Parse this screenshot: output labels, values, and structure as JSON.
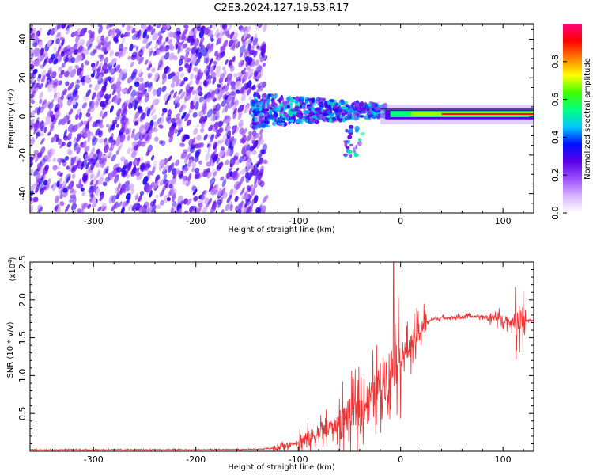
{
  "title": "C2E3.2024.127.19.53.R17",
  "chart_data": [
    {
      "type": "heatmap",
      "xlabel": "Height of straight line (km)",
      "ylabel": "Frequency (Hz)",
      "xlim": [
        -362,
        130
      ],
      "ylim": [
        -50,
        48
      ],
      "xticks": [
        -300,
        -200,
        -100,
        0,
        100
      ],
      "yticks": [
        -40,
        -20,
        0,
        20,
        40
      ],
      "colorbar": {
        "label": "Normalized spectral amplitude",
        "range": [
          0,
          1
        ],
        "ticks": [
          "0.0",
          "0.2",
          "0.4",
          "0.6",
          "0.8"
        ],
        "colors": [
          "#ffffff",
          "#d9b3ff",
          "#9a4dff",
          "#5a00e8",
          "#0010ff",
          "#00c8ff",
          "#00ff80",
          "#40ff00",
          "#ffff00",
          "#ff8000",
          "#ff0000",
          "#ff0080"
        ]
      },
      "regions": [
        {
          "x": [
            -362,
            -140
          ],
          "freq": [
            -50,
            48
          ],
          "amplitude": "0.1-0.3"
        },
        {
          "x": [
            -140,
            -20
          ],
          "freq": [
            -20,
            12
          ],
          "amplitude": "0.3-0.5"
        },
        {
          "x": [
            -20,
            130
          ],
          "freq": [
            -2,
            4
          ],
          "amplitude": "0.6-0.9"
        }
      ]
    },
    {
      "type": "line",
      "xlabel": "Height of straight line (km)",
      "ylabel": "SNR (10 * v/v)",
      "scale_label": "(x10",
      "scale_exp": "4",
      "scale_close": ")",
      "xlim": [
        -362,
        130
      ],
      "ylim": [
        0,
        25000
      ],
      "xticks": [
        -300,
        -200,
        -100,
        0,
        100
      ],
      "yticks": [
        "0.5",
        "1.0",
        "1.5",
        "2.0",
        "2.5"
      ],
      "ytick_values": [
        5000,
        10000,
        15000,
        20000,
        25000
      ],
      "color": "#ee3333",
      "series": [
        {
          "x": [
            -362,
            -300,
            -200,
            -140,
            -125,
            -110,
            -100,
            -90,
            -80,
            -70,
            -60,
            -50,
            -40,
            -30,
            -25,
            -20,
            -15,
            -10,
            -5,
            0,
            5,
            10,
            15,
            20,
            25,
            30,
            40,
            50,
            60,
            70,
            80,
            90,
            100,
            105,
            110,
            115,
            118,
            120,
            125,
            130
          ],
          "values": [
            200,
            200,
            200,
            250,
            400,
            800,
            1300,
            1700,
            2300,
            2900,
            3600,
            4600,
            5400,
            7200,
            7900,
            8800,
            9800,
            10600,
            11800,
            12500,
            13200,
            14000,
            15000,
            16200,
            17000,
            17400,
            17600,
            17700,
            17800,
            17800,
            17800,
            17700,
            17500,
            17200,
            17000,
            17300,
            17800,
            17200,
            17300,
            17300
          ]
        }
      ],
      "spike": {
        "x": -7,
        "value": 25000
      }
    }
  ]
}
